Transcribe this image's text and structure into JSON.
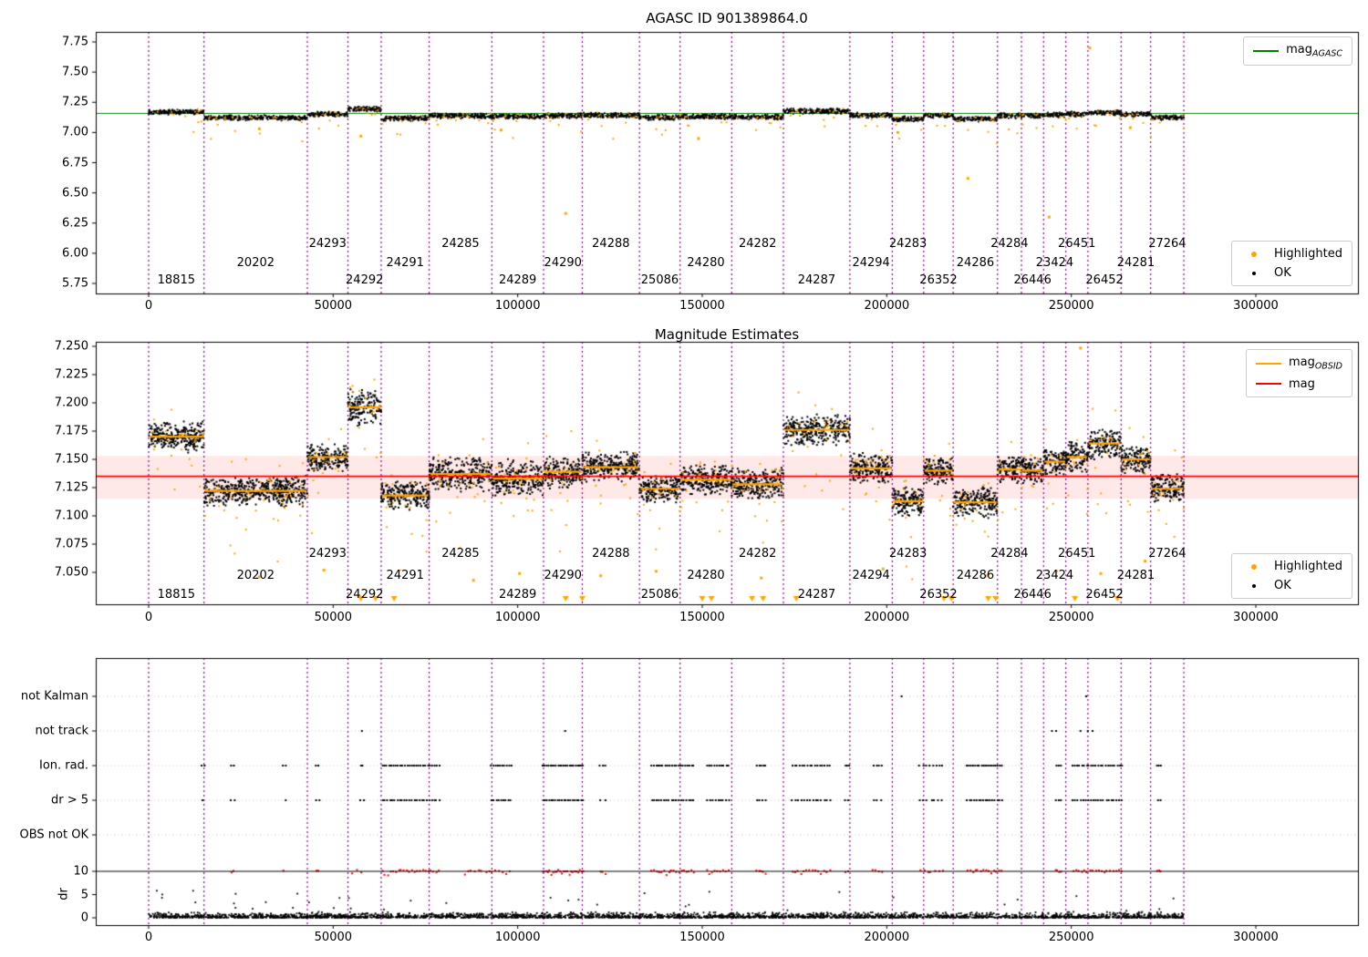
{
  "figure": {
    "top_title": "AGASC ID 901389864.0",
    "middle_title": "Magnitude Estimates"
  },
  "colors": {
    "highlighted": "#FFA500",
    "ok": "#000000",
    "mag_obsid": "#FFA500",
    "mag": "#FF0000",
    "mag_agasc": "#008000",
    "boundary": "#8B008B",
    "band": "rgba(255,0,0,0.09)",
    "flag": "#000000",
    "dr_red": "#FF0000",
    "gridline": "#c9c9c9"
  },
  "legends": {
    "mag_agasc": {
      "label": "mag",
      "sub": "AGASC",
      "color": "#008000"
    },
    "mag_obsid": {
      "label": "mag",
      "sub": "OBSID",
      "color": "#FFA500"
    },
    "mag": {
      "label": "mag",
      "color": "#FF0000"
    },
    "highlighted": {
      "label": "Highlighted",
      "color": "#FFA500"
    },
    "ok": {
      "label": "OK",
      "color": "#000000"
    }
  },
  "axes": {
    "x_tick_values": [
      0,
      50000,
      100000,
      150000,
      200000,
      250000,
      300000
    ],
    "x_tick_labels": [
      "0",
      "50000",
      "100000",
      "150000",
      "200000",
      "250000",
      "300000"
    ],
    "top_y_ticks": [
      {
        "value": 7.75,
        "label": "7.75"
      },
      {
        "value": 7.5,
        "label": "7.50"
      },
      {
        "value": 7.25,
        "label": "7.25"
      },
      {
        "value": 7.0,
        "label": "7.00"
      },
      {
        "value": 6.75,
        "label": "6.75"
      },
      {
        "value": 6.5,
        "label": "6.50"
      },
      {
        "value": 6.25,
        "label": "6.25"
      },
      {
        "value": 6.0,
        "label": "6.00"
      },
      {
        "value": 5.75,
        "label": "5.75"
      }
    ],
    "middle_y_ticks": [
      {
        "value": 7.25,
        "label": "7.250"
      },
      {
        "value": 7.225,
        "label": "7.225"
      },
      {
        "value": 7.2,
        "label": "7.200"
      },
      {
        "value": 7.175,
        "label": "7.175"
      },
      {
        "value": 7.15,
        "label": "7.150"
      },
      {
        "value": 7.125,
        "label": "7.125"
      },
      {
        "value": 7.1,
        "label": "7.100"
      },
      {
        "value": 7.075,
        "label": "7.075"
      },
      {
        "value": 7.05,
        "label": "7.050"
      }
    ],
    "dr_ticks": [
      {
        "value": 10,
        "label": "10"
      },
      {
        "value": 5,
        "label": "5"
      },
      {
        "value": 0,
        "label": "0"
      }
    ],
    "dr_label": "dr"
  },
  "chart_data": [
    {
      "type": "scatter",
      "title": "AGASC ID 901389864.0",
      "xlabel": "",
      "ylabel": "",
      "xlim": [
        -14000,
        327000
      ],
      "ylim": [
        5.667,
        7.833
      ],
      "mag_agasc": 7.158,
      "series": [
        {
          "name": "mag_AGASC",
          "color": "#008000",
          "style": "line"
        },
        {
          "name": "Highlighted",
          "color": "#FFA500",
          "style": "points"
        },
        {
          "name": "OK",
          "color": "#000000",
          "style": "points"
        }
      ],
      "outliers": [
        [
          255000,
          7.7
        ],
        [
          113000,
          6.33
        ],
        [
          222000,
          6.62
        ],
        [
          244000,
          6.3
        ],
        [
          57500,
          6.97
        ],
        [
          149000,
          6.95
        ],
        [
          95500,
          7.02
        ],
        [
          203000,
          7.0
        ],
        [
          30000,
          7.03
        ],
        [
          266000,
          7.04
        ]
      ]
    },
    {
      "type": "scatter",
      "title": "Magnitude Estimates",
      "xlabel": "",
      "ylabel": "",
      "xlim": [
        -14000,
        327000
      ],
      "ylim": [
        7.028,
        7.25
      ],
      "mag_mean": 7.135,
      "mag_band": [
        7.115,
        7.153
      ],
      "series": [
        {
          "name": "mag_OBSID",
          "color": "#FFA500",
          "style": "line"
        },
        {
          "name": "mag",
          "color": "#FF0000",
          "style": "line"
        },
        {
          "name": "Highlighted",
          "color": "#FFA500",
          "style": "points"
        },
        {
          "name": "OK",
          "color": "#000000",
          "style": "points"
        }
      ],
      "obsids": [
        {
          "id": 18815,
          "x0": 0,
          "x1": 15000,
          "mag": 7.17,
          "spread": 0.013
        },
        {
          "id": 20202,
          "x0": 15000,
          "x1": 43000,
          "mag": 7.122,
          "spread": 0.013
        },
        {
          "id": 24293,
          "x0": 43000,
          "x1": 54000,
          "mag": 7.152,
          "spread": 0.012
        },
        {
          "id": 24292,
          "x0": 54000,
          "x1": 63000,
          "mag": 7.196,
          "spread": 0.016
        },
        {
          "id": 24291,
          "x0": 63000,
          "x1": 76000,
          "mag": 7.118,
          "spread": 0.013
        },
        {
          "id": 24285,
          "x0": 76000,
          "x1": 93000,
          "mag": 7.137,
          "spread": 0.015
        },
        {
          "id": 24289,
          "x0": 93000,
          "x1": 107000,
          "mag": 7.133,
          "spread": 0.016
        },
        {
          "id": 24290,
          "x0": 107000,
          "x1": 117500,
          "mag": 7.139,
          "spread": 0.014
        },
        {
          "id": 24288,
          "x0": 117500,
          "x1": 133000,
          "mag": 7.143,
          "spread": 0.013
        },
        {
          "id": 25086,
          "x0": 133000,
          "x1": 144000,
          "mag": 7.124,
          "spread": 0.012
        },
        {
          "id": 24280,
          "x0": 144000,
          "x1": 158000,
          "mag": 7.132,
          "spread": 0.013
        },
        {
          "id": 24282,
          "x0": 158000,
          "x1": 172000,
          "mag": 7.128,
          "spread": 0.014
        },
        {
          "id": 24287,
          "x0": 172000,
          "x1": 190000,
          "mag": 7.176,
          "spread": 0.013
        },
        {
          "id": 24294,
          "x0": 190000,
          "x1": 201500,
          "mag": 7.142,
          "spread": 0.013
        },
        {
          "id": 24283,
          "x0": 201500,
          "x1": 210000,
          "mag": 7.113,
          "spread": 0.013
        },
        {
          "id": 26352,
          "x0": 210000,
          "x1": 218000,
          "mag": 7.14,
          "spread": 0.012
        },
        {
          "id": 24286,
          "x0": 218000,
          "x1": 230000,
          "mag": 7.112,
          "spread": 0.013
        },
        {
          "id": 24284,
          "x0": 230000,
          "x1": 236500,
          "mag": 7.141,
          "spread": 0.012
        },
        {
          "id": 26446,
          "x0": 236500,
          "x1": 242500,
          "mag": 7.14,
          "spread": 0.012
        },
        {
          "id": 23424,
          "x0": 242500,
          "x1": 248500,
          "mag": 7.148,
          "spread": 0.012
        },
        {
          "id": 26451,
          "x0": 248500,
          "x1": 254500,
          "mag": 7.152,
          "spread": 0.013
        },
        {
          "id": 26452,
          "x0": 254500,
          "x1": 263500,
          "mag": 7.164,
          "spread": 0.014
        },
        {
          "id": 24281,
          "x0": 263500,
          "x1": 271500,
          "mag": 7.15,
          "spread": 0.012
        },
        {
          "id": 27264,
          "x0": 271500,
          "x1": 280500,
          "mag": 7.124,
          "spread": 0.012
        }
      ],
      "outliers": [
        [
          252500,
          7.2485
        ],
        [
          30000,
          7.046
        ],
        [
          47500,
          7.052
        ],
        [
          88000,
          7.043
        ],
        [
          100500,
          7.049
        ],
        [
          122500,
          7.047
        ],
        [
          137500,
          7.051
        ],
        [
          166000,
          7.045
        ],
        [
          199000,
          7.053
        ],
        [
          227000,
          7.047
        ],
        [
          246000,
          7.051
        ],
        [
          258000,
          7.049
        ],
        [
          270000,
          7.06
        ]
      ],
      "clip_low_x": [
        57500,
        61500,
        66500,
        113000,
        117500,
        150000,
        152500,
        163500,
        166500,
        175500,
        215500,
        217500,
        227500,
        229500,
        251000,
        262500
      ]
    },
    {
      "type": "scatter",
      "title": "",
      "rows": [
        "not Kalman",
        "not track",
        "Ion. rad.",
        "dr > 5",
        "OBS not OK"
      ],
      "flag_clusters": {
        "not Kalman": [
          [
            203000,
            204500,
            1
          ],
          [
            253000,
            254500,
            1
          ]
        ],
        "not track": [
          [
            57500,
            58500,
            1
          ],
          [
            112500,
            113500,
            1
          ],
          [
            244500,
            246500,
            2
          ],
          [
            251500,
            256500,
            3
          ]
        ],
        "Ion. rad.": [
          [
            14000,
            15500,
            2
          ],
          [
            22000,
            23500,
            2
          ],
          [
            36000,
            37500,
            2
          ],
          [
            45000,
            46500,
            2
          ],
          [
            57000,
            58500,
            2
          ],
          [
            63000,
            79000,
            26
          ],
          [
            92500,
            98500,
            10
          ],
          [
            106500,
            118000,
            22
          ],
          [
            122000,
            124000,
            3
          ],
          [
            136000,
            148000,
            20
          ],
          [
            151000,
            157500,
            10
          ],
          [
            164500,
            167500,
            5
          ],
          [
            174000,
            185000,
            16
          ],
          [
            188500,
            190000,
            3
          ],
          [
            196000,
            199000,
            4
          ],
          [
            208500,
            215500,
            8
          ],
          [
            221500,
            231500,
            18
          ],
          [
            245500,
            247500,
            3
          ],
          [
            250000,
            264000,
            22
          ],
          [
            273000,
            274500,
            3
          ]
        ],
        "dr > 5": [
          [
            14000,
            15500,
            1
          ],
          [
            22000,
            23500,
            2
          ],
          [
            36000,
            37500,
            1
          ],
          [
            45000,
            46500,
            2
          ],
          [
            57000,
            58500,
            2
          ],
          [
            63000,
            79000,
            24
          ],
          [
            92500,
            98500,
            9
          ],
          [
            106500,
            118000,
            20
          ],
          [
            122000,
            124000,
            2
          ],
          [
            136000,
            148000,
            18
          ],
          [
            151000,
            157500,
            9
          ],
          [
            164500,
            167500,
            4
          ],
          [
            174000,
            185000,
            14
          ],
          [
            188500,
            190000,
            2
          ],
          [
            196000,
            199000,
            3
          ],
          [
            208500,
            215500,
            7
          ],
          [
            221500,
            231500,
            16
          ],
          [
            245500,
            247500,
            3
          ],
          [
            250000,
            264000,
            20
          ],
          [
            273000,
            274500,
            2
          ]
        ],
        "OBS not OK": []
      },
      "dr": {
        "label": "dr",
        "ylim": [
          0,
          10.5
        ],
        "hline": 10,
        "x_max": 280500,
        "red_clusters": [
          [
            22000,
            23500,
            2
          ],
          [
            36000,
            37500,
            1
          ],
          [
            45000,
            46500,
            2
          ],
          [
            54000,
            58500,
            3
          ],
          [
            63000,
            79000,
            22
          ],
          [
            85000,
            98500,
            14
          ],
          [
            106500,
            118000,
            24
          ],
          [
            122000,
            124000,
            3
          ],
          [
            136000,
            148000,
            18
          ],
          [
            151000,
            157500,
            9
          ],
          [
            164500,
            167500,
            5
          ],
          [
            174000,
            185000,
            14
          ],
          [
            188500,
            190000,
            2
          ],
          [
            196000,
            199000,
            4
          ],
          [
            208500,
            215500,
            7
          ],
          [
            221500,
            231500,
            14
          ],
          [
            245500,
            247500,
            4
          ],
          [
            250000,
            264000,
            18
          ],
          [
            273000,
            274500,
            3
          ]
        ]
      }
    }
  ]
}
